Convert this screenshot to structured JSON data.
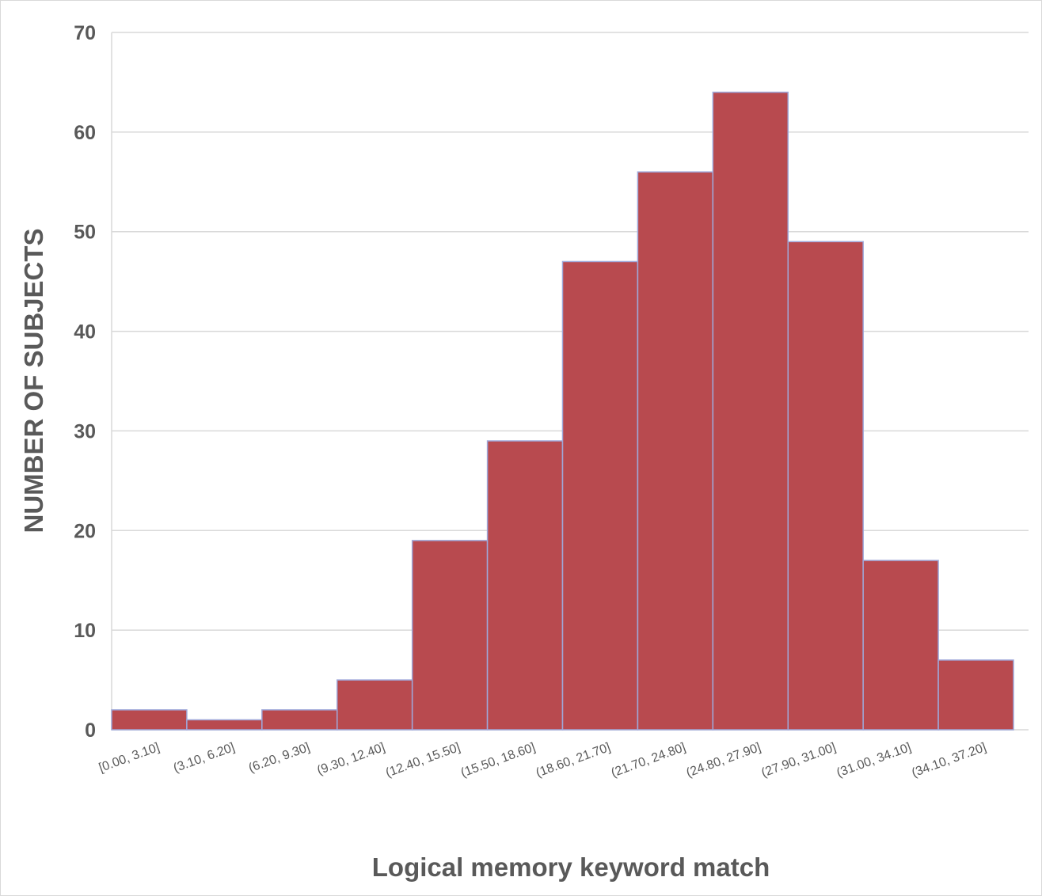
{
  "chart_data": {
    "type": "bar",
    "title": "",
    "xlabel": "Logical memory keyword match",
    "ylabel": "NUMBER OF SUBJECTS",
    "categories": [
      "[0.00, 3.10]",
      "(3.10, 6.20]",
      "(6.20, 9.30]",
      "(9.30, 12.40]",
      "(12.40, 15.50]",
      "(15.50, 18.60]",
      "(18.60, 21.70]",
      "(21.70, 24.80]",
      "(24.80, 27.90]",
      "(27.90, 31.00]",
      "(31.00, 34.10]",
      "(34.10, 37.20]"
    ],
    "values": [
      2,
      1,
      2,
      5,
      19,
      29,
      47,
      56,
      64,
      49,
      17,
      7
    ],
    "ylim": [
      0,
      70
    ],
    "yticks": [
      "0",
      "10",
      "20",
      "30",
      "40",
      "50",
      "60",
      "70"
    ],
    "grid": true,
    "legend": "none",
    "colors": {
      "bar": "#b84a4f",
      "bar_edge": "#9fa8da",
      "grid": "#d9d9d9",
      "text": "#595959"
    }
  }
}
